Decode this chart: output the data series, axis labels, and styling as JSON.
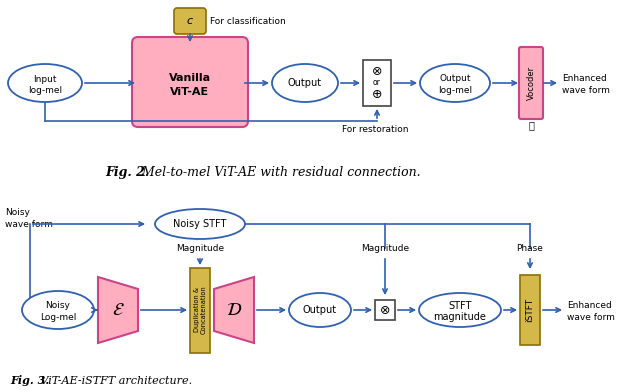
{
  "fig_width": 6.4,
  "fig_height": 3.92,
  "dpi": 100,
  "bg_color": "#ffffff",
  "arrow_color": "#3060b0",
  "arrow_lw": 1.2,
  "ellipse_ec": "#3060b0",
  "ellipse_lw": 1.3,
  "pink_fill": "#ffaec0",
  "pink_ec": "#cc4488",
  "yellow_fill": "#d4b84a",
  "yellow_ec": "#8a7000",
  "op_ec": "#444444",
  "fig2_text_normal": " Mel-to-mel ViT-AE with residual connection.",
  "fig2_text_bold": "Fig. 2.",
  "fig3_text_bold": "Fig. 3.",
  "fig3_text_normal": " ViT-AE-iSTFT architecture."
}
